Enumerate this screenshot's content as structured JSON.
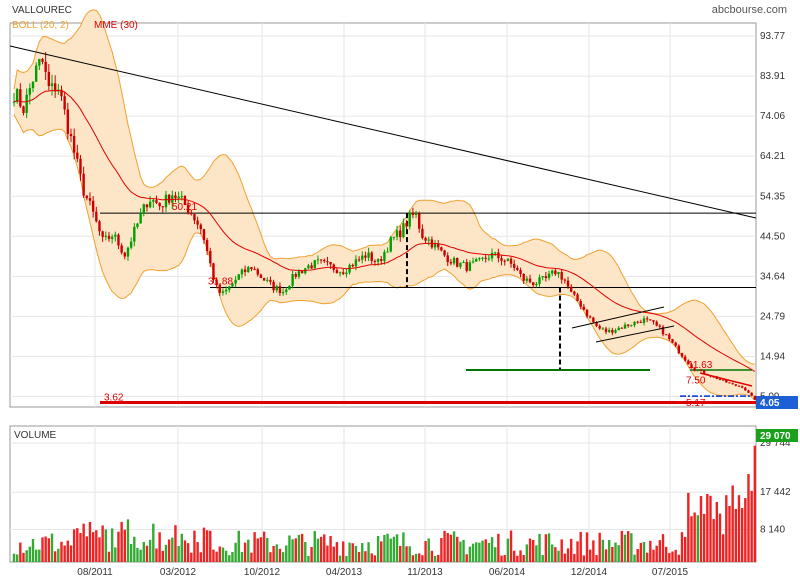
{
  "header": {
    "title": "VALLOUREC",
    "brand": "abcbourse.com",
    "indicators": [
      {
        "label": "BOLL (20, 2)",
        "color": "#f0a030"
      },
      {
        "label": "MME (30)",
        "color": "#e00000"
      }
    ]
  },
  "chart_data": [
    {
      "type": "candlestick",
      "title": "VALLOUREC",
      "y_ticks": [
        "93.77",
        "83.91",
        "74.06",
        "64.21",
        "54.35",
        "44.50",
        "34.64",
        "24.79",
        "14.94",
        "5.09"
      ],
      "ylim": [
        3.0,
        93.77
      ],
      "x_ticks": [
        "08/2011",
        "03/2012",
        "10/2012",
        "04/2013",
        "11/2013",
        "06/2014",
        "12/2014",
        "07/2015"
      ],
      "last_price": "4.05",
      "annotations": [
        {
          "text": "3.62",
          "value": 3.62,
          "color": "#dd0000"
        },
        {
          "text": "50.21",
          "value": 50.21,
          "color": "#dd0000"
        },
        {
          "text": "31.88",
          "value": 31.88,
          "color": "#dd0000"
        },
        {
          "text": "11.63",
          "value": 11.63,
          "color": "#dd0000"
        },
        {
          "text": "7.50",
          "value": 7.5,
          "color": "#dd0000"
        },
        {
          "text": "5.17",
          "value": 5.17,
          "color": "#dd0000"
        }
      ],
      "levels": [
        {
          "value": 50.2,
          "color": "#000000"
        },
        {
          "value": 31.9,
          "color": "#000000"
        },
        {
          "value": 11.6,
          "color": "#007700"
        },
        {
          "value": 3.62,
          "color": "#dd0000"
        }
      ],
      "anchors": [
        [
          0,
          80
        ],
        [
          10,
          76
        ],
        [
          20,
          84
        ],
        [
          28,
          88
        ],
        [
          36,
          80
        ],
        [
          44,
          82
        ],
        [
          52,
          74
        ],
        [
          60,
          66
        ],
        [
          70,
          56
        ],
        [
          80,
          50
        ],
        [
          90,
          43
        ],
        [
          100,
          45
        ],
        [
          112,
          40
        ],
        [
          124,
          47
        ],
        [
          136,
          54
        ],
        [
          148,
          52
        ],
        [
          160,
          55
        ],
        [
          170,
          53
        ],
        [
          180,
          50
        ],
        [
          190,
          46
        ],
        [
          198,
          38
        ],
        [
          204,
          32
        ],
        [
          210,
          30
        ],
        [
          218,
          32
        ],
        [
          228,
          35
        ],
        [
          240,
          37
        ],
        [
          252,
          34
        ],
        [
          262,
          32
        ],
        [
          272,
          31
        ],
        [
          284,
          35
        ],
        [
          296,
          37
        ],
        [
          308,
          38
        ],
        [
          320,
          37
        ],
        [
          332,
          36
        ],
        [
          344,
          38
        ],
        [
          356,
          40
        ],
        [
          368,
          38
        ],
        [
          380,
          43
        ],
        [
          392,
          46
        ],
        [
          400,
          49
        ],
        [
          406,
          50
        ],
        [
          412,
          45
        ],
        [
          422,
          43
        ],
        [
          434,
          40
        ],
        [
          446,
          38
        ],
        [
          458,
          37
        ],
        [
          470,
          38
        ],
        [
          482,
          40
        ],
        [
          494,
          39
        ],
        [
          506,
          37
        ],
        [
          514,
          34
        ],
        [
          526,
          33
        ],
        [
          538,
          34
        ],
        [
          548,
          36
        ],
        [
          556,
          34
        ],
        [
          564,
          30
        ],
        [
          572,
          28
        ],
        [
          580,
          25
        ],
        [
          590,
          22
        ],
        [
          600,
          21
        ],
        [
          612,
          22
        ],
        [
          624,
          23
        ],
        [
          636,
          24
        ],
        [
          646,
          23
        ],
        [
          656,
          21
        ],
        [
          666,
          18
        ],
        [
          676,
          15
        ],
        [
          686,
          12
        ],
        [
          696,
          11
        ],
        [
          706,
          10
        ],
        [
          716,
          9
        ],
        [
          726,
          8
        ],
        [
          736,
          7.5
        ],
        [
          744,
          5.5
        ],
        [
          750,
          4.05
        ]
      ],
      "candle_step": 3.2,
      "colors": {
        "up": "#00a000",
        "down": "#cc0000",
        "boll_fill": "#fde6c7",
        "boll_line": "#f0a030",
        "ema": "#e00000"
      }
    },
    {
      "type": "bar",
      "title": "VOLUME",
      "y_ticks": [
        "29 744",
        "17 442",
        "8 140"
      ],
      "last_volume": "29 070",
      "ylim": [
        0,
        31000
      ],
      "spikes": [
        {
          "x": 700,
          "v": 17000
        },
        {
          "x": 712,
          "v": 15000
        },
        {
          "x": 722,
          "v": 14000
        },
        {
          "x": 735,
          "v": 13500
        },
        {
          "x": 742,
          "v": 22000
        },
        {
          "x": 748,
          "v": 29070
        }
      ]
    }
  ]
}
